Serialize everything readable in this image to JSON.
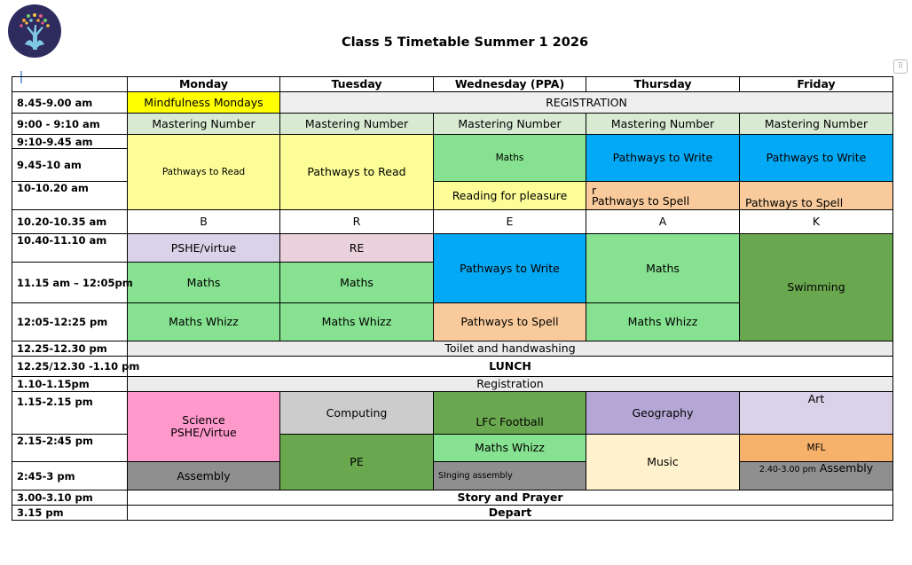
{
  "title": "Class 5  Timetable Summer 1 2026",
  "handle_icon": "drag-handle-icon",
  "header": {
    "blank": "",
    "days": [
      "Monday",
      "Tuesday",
      "Wednesday (PPA)",
      "Thursday",
      "Friday"
    ]
  },
  "times": {
    "t1": "8.45-9.00 am",
    "t2": "9:00 - 9:10 am",
    "t3": "9:10-9.45 am",
    "t4": "9.45-10 am",
    "t5": "10-10.20 am",
    "t6": "10.20-10.35 am",
    "t7": "10.40-11.10 am",
    "t8": "11.15 am – 12:05pm",
    "t9": "12:05-12:25 pm",
    "t10": "12.25-12.30 pm",
    "t11": "12.25/12.30 -1.10 pm",
    "t12": "1.10-1.15pm",
    "t13": "1.15-2.15 pm",
    "t14": "2.15-2:45 pm",
    "t15": "2:45-3 pm",
    "t16": "3.00-3.10 pm",
    "t17": "3.15 pm"
  },
  "cells": {
    "mindfulness": "Mindfulness Mondays",
    "registration": "REGISTRATION",
    "mastering": "Mastering Number",
    "pathways_read": "Pathways to Read",
    "maths": "Maths",
    "pathways_write": "Pathways to Write",
    "reading_pleasure": "Reading for pleasure",
    "r_letter": "r",
    "pathways_spell": "Pathways to Spell",
    "b": "B",
    "r": "R",
    "e": "E",
    "a": "A",
    "k": "K",
    "pshe": "PSHE/virtue",
    "re": "RE",
    "swimming": "Swimming",
    "maths_whizz": "Maths Whizz",
    "toilet": "Toilet and handwashing",
    "lunch": "LUNCH",
    "registration2": "Registration",
    "science": "Science",
    "pshe_virtue": "PSHE/Virtue",
    "computing": "Computing",
    "lfc": "LFC Football",
    "geography": "Geography",
    "art": "Art",
    "pe": "PE",
    "music": "Music",
    "mfl": "MFL",
    "assembly": "Assembly",
    "singing": "SInging assembly",
    "fri_assembly_time": "2.40-3.00 pm",
    "story": "Story and Prayer",
    "depart": "Depart"
  }
}
